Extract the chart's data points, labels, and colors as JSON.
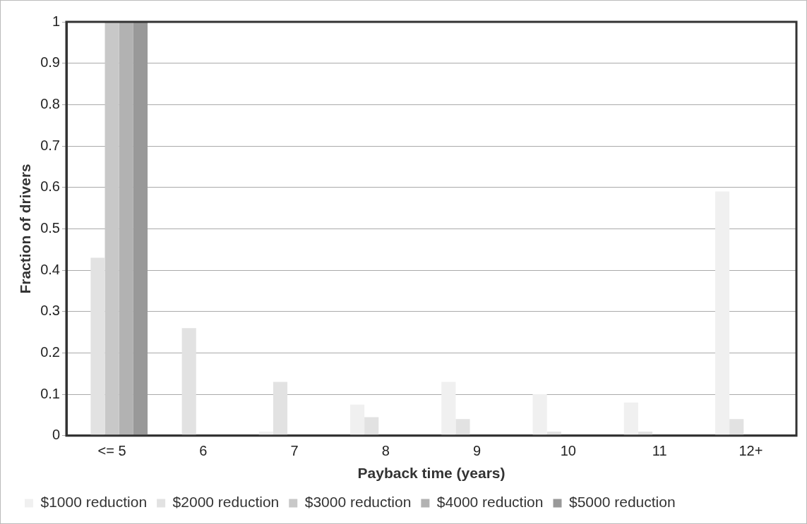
{
  "chart_data": {
    "type": "bar",
    "xlabel": "Payback time (years)",
    "ylabel": "Fraction of drivers",
    "categories": [
      "<= 5",
      "6",
      "7",
      "8",
      "9",
      "10",
      "11",
      "12+"
    ],
    "series": [
      {
        "name": "$1000 reduction",
        "color": "#f0f0f0",
        "values": [
          0,
          0,
          0.01,
          0.075,
          0.13,
          0.1,
          0.08,
          0.59
        ]
      },
      {
        "name": "$2000 reduction",
        "color": "#e2e2e2",
        "values": [
          0.43,
          0.26,
          0.13,
          0.045,
          0.04,
          0.01,
          0.01,
          0.04
        ]
      },
      {
        "name": "$3000 reduction",
        "color": "#c8c8c8",
        "values": [
          1,
          0,
          0,
          0,
          0,
          0,
          0,
          0
        ]
      },
      {
        "name": "$4000 reduction",
        "color": "#b2b2b2",
        "values": [
          1,
          0,
          0,
          0,
          0,
          0,
          0,
          0
        ]
      },
      {
        "name": "$5000 reduction",
        "color": "#999999",
        "values": [
          1,
          0,
          0,
          0,
          0,
          0,
          0,
          0
        ]
      }
    ],
    "ylim": [
      0,
      1
    ],
    "yticks": [
      0,
      0.1,
      0.2,
      0.3,
      0.4,
      0.5,
      0.6,
      0.7,
      0.8,
      0.9,
      1
    ],
    "grid": "y",
    "legend": "bottom"
  }
}
